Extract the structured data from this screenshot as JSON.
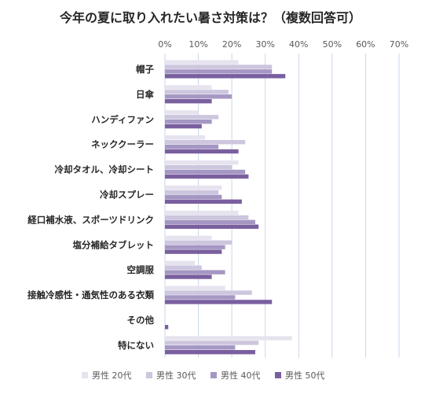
{
  "chart_data": {
    "type": "bar",
    "orientation": "horizontal",
    "title": "今年の夏に取り入れたい暑さ対策は？（複数回答可）",
    "categories": [
      "帽子",
      "日傘",
      "ハンディファン",
      "ネッククーラー",
      "冷却タオル、冷却シート",
      "冷却スプレー",
      "経口補水液、スポーツドリンク",
      "塩分補給タブレット",
      "空調服",
      "接触冷感性・通気性のある衣類",
      "その他",
      "特にない"
    ],
    "series": [
      {
        "name": "男性 20代",
        "color": "#e6e3ef",
        "values": [
          22,
          14,
          10,
          12,
          22,
          17,
          22,
          14,
          9,
          18,
          0,
          38
        ]
      },
      {
        "name": "男性 30代",
        "color": "#cdc6de",
        "values": [
          32,
          19,
          16,
          24,
          20,
          16,
          25,
          20,
          11,
          26,
          0,
          28
        ]
      },
      {
        "name": "男性 40代",
        "color": "#a597c3",
        "values": [
          32,
          20,
          14,
          16,
          24,
          17,
          27,
          18,
          18,
          21,
          0,
          21
        ]
      },
      {
        "name": "男性 50代",
        "color": "#7a5f9f",
        "values": [
          36,
          14,
          11,
          22,
          25,
          23,
          28,
          17,
          14,
          32,
          1,
          27
        ]
      }
    ],
    "xlim": [
      0,
      70
    ],
    "xticks": [
      "0%",
      "10%",
      "20%",
      "30%",
      "40%",
      "50%",
      "60%",
      "70%"
    ],
    "grid": true,
    "gridColor": "#c9d7e8",
    "legend_position": "bottom"
  }
}
